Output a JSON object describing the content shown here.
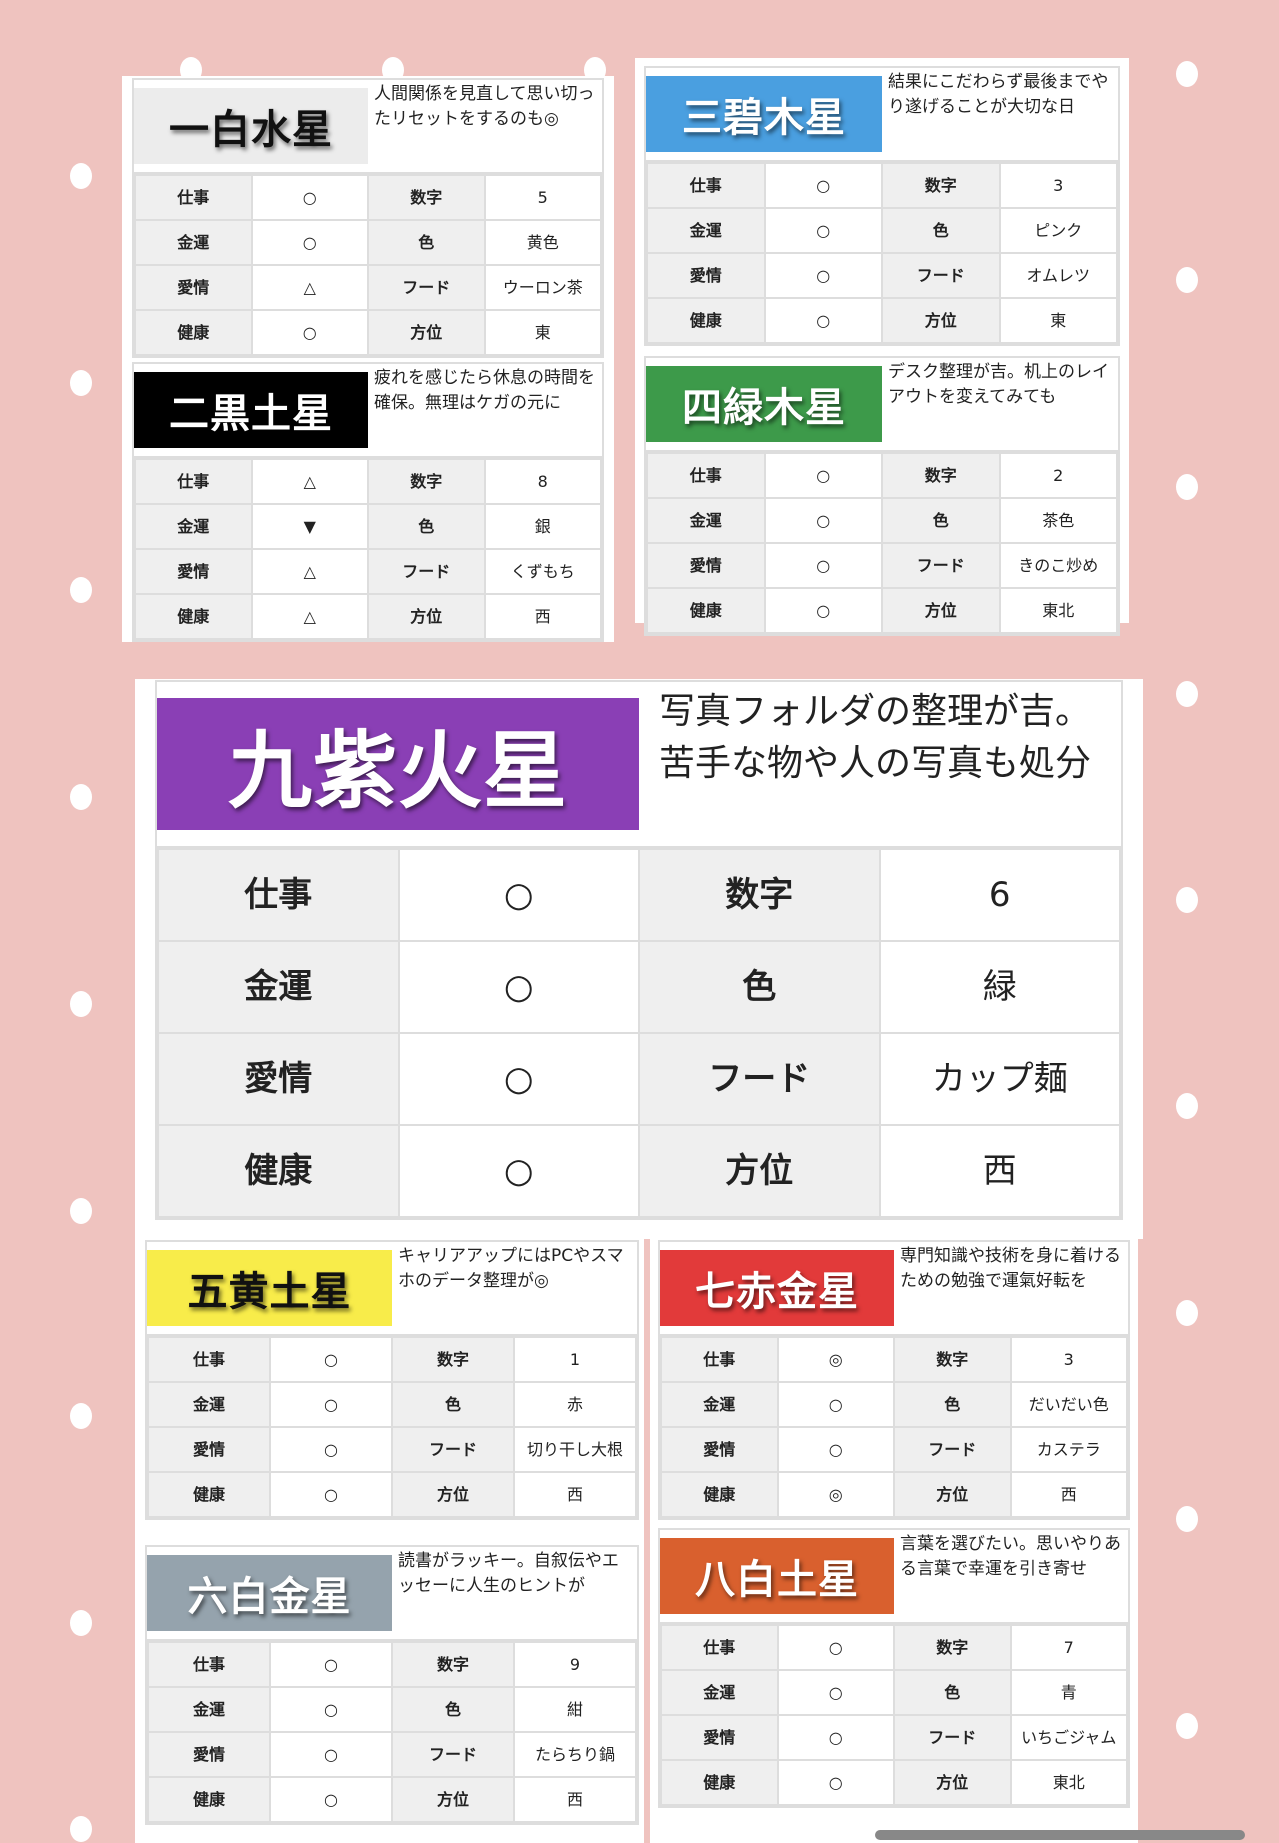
{
  "labels": {
    "work": "仕事",
    "money": "金運",
    "love": "愛情",
    "health": "健康",
    "number": "数字",
    "color": "色",
    "food": "フード",
    "direction": "方位"
  },
  "cards": [
    {
      "id": "ippaku",
      "title": "一白水星",
      "bg": "#ececec",
      "fg": "#111",
      "desc": "人間関係を見直して思い切ったリセットをするのも◎",
      "work": "○",
      "money": "○",
      "love": "△",
      "health": "○",
      "number": "5",
      "color": "黄色",
      "food": "ウーロン茶",
      "direction": "東"
    },
    {
      "id": "jikoku",
      "title": "二黒土星",
      "bg": "#000000",
      "fg": "#fff",
      "desc": "疲れを感じたら休息の時間を確保。無理はケガの元に",
      "work": "△",
      "money": "▼",
      "love": "△",
      "health": "△",
      "number": "8",
      "color": "銀",
      "food": "くずもち",
      "direction": "西"
    },
    {
      "id": "sanpeki",
      "title": "三碧木星",
      "bg": "#4a9fe0",
      "fg": "#fff",
      "desc": "結果にこだわらず最後までやり遂げることが大切な日",
      "work": "○",
      "money": "○",
      "love": "○",
      "health": "○",
      "number": "3",
      "color": "ピンク",
      "food": "オムレツ",
      "direction": "東"
    },
    {
      "id": "shiroku",
      "title": "四緑木星",
      "bg": "#3d9a4a",
      "fg": "#fff",
      "desc": "デスク整理が吉。机上のレイアウトを変えてみても",
      "work": "○",
      "money": "○",
      "love": "○",
      "health": "○",
      "number": "2",
      "color": "茶色",
      "food": "きのこ炒め",
      "direction": "東北"
    },
    {
      "id": "kyushi",
      "title": "九紫火星",
      "bg": "#8a3fb5",
      "fg": "#fff",
      "desc": "写真フォルダの整理が吉。苦手な物や人の写真も処分",
      "work": "○",
      "money": "○",
      "love": "○",
      "health": "○",
      "number": "6",
      "color": "緑",
      "food": "カップ麺",
      "direction": "西"
    },
    {
      "id": "goou",
      "title": "五黄土星",
      "bg": "#f8ec4a",
      "fg": "#111",
      "desc": "キャリアアップにはPCやスマホのデータ整理が◎",
      "work": "○",
      "money": "○",
      "love": "○",
      "health": "○",
      "number": "1",
      "color": "赤",
      "food": "切り干し大根",
      "direction": "西"
    },
    {
      "id": "roppaku",
      "title": "六白金星",
      "bg": "#95a3ad",
      "fg": "#fff",
      "desc": "読書がラッキー。自叙伝やエッセーに人生のヒントが",
      "work": "○",
      "money": "○",
      "love": "○",
      "health": "○",
      "number": "9",
      "color": "紺",
      "food": "たらちり鍋",
      "direction": "西"
    },
    {
      "id": "shichiseki",
      "title": "七赤金星",
      "bg": "#e23a3a",
      "fg": "#fff",
      "desc": "専門知識や技術を身に着けるための勉強で運氣好転を",
      "work": "◎",
      "money": "○",
      "love": "○",
      "health": "◎",
      "number": "3",
      "color": "だいだい色",
      "food": "カステラ",
      "direction": "西"
    },
    {
      "id": "happaku",
      "title": "八白土星",
      "bg": "#d9602e",
      "fg": "#fff",
      "desc": "言葉を選びたい。思いやりある言葉で幸運を引き寄せ",
      "work": "○",
      "money": "○",
      "love": "○",
      "health": "○",
      "number": "7",
      "color": "青",
      "food": "いちごジャム",
      "direction": "東北"
    }
  ]
}
